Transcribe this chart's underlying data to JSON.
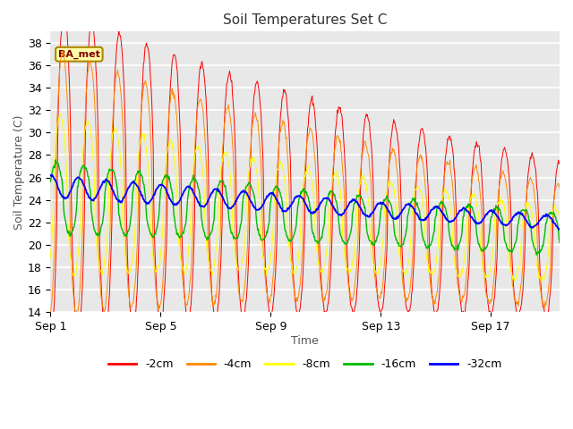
{
  "title": "Soil Temperatures Set C",
  "xlabel": "Time",
  "ylabel": "Soil Temperature (C)",
  "ylim": [
    14,
    39
  ],
  "yticks": [
    14,
    16,
    18,
    20,
    22,
    24,
    26,
    28,
    30,
    32,
    34,
    36,
    38
  ],
  "annotation": "BA_met",
  "series_colors": {
    "-2cm": "#ff0000",
    "-4cm": "#ff8800",
    "-8cm": "#ffff00",
    "-16cm": "#00bb00",
    "-32cm": "#0000ff"
  },
  "plot_bg_color": "#e8e8e8",
  "n_days": 18.5,
  "pts_per_day": 48,
  "xtick_days": [
    0,
    4,
    8,
    12,
    16
  ],
  "xtick_labels": [
    "Sep 1",
    "Sep 5",
    "Sep 9",
    "Sep 13",
    "Sep 17"
  ]
}
